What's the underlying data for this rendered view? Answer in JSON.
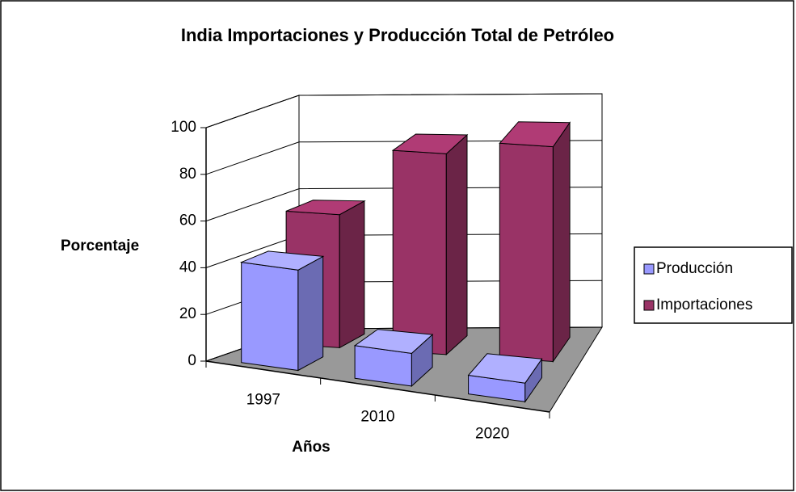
{
  "chart_data": {
    "type": "bar3d",
    "title": "India Importaciones y Producción Total de Petróleo",
    "x_label": "Años",
    "y_label": "Porcentaje",
    "categories": [
      "1997",
      "2010",
      "2020"
    ],
    "series": [
      {
        "name": "Producción",
        "color": "#9999ff",
        "values": [
          43,
          14,
          8
        ]
      },
      {
        "name": "Importaciones",
        "color": "#993366",
        "values": [
          57,
          86,
          92
        ]
      }
    ],
    "ylim": [
      0,
      100
    ],
    "yticks": [
      0,
      20,
      40,
      60,
      80,
      100
    ],
    "grid": true,
    "legend": "right"
  }
}
